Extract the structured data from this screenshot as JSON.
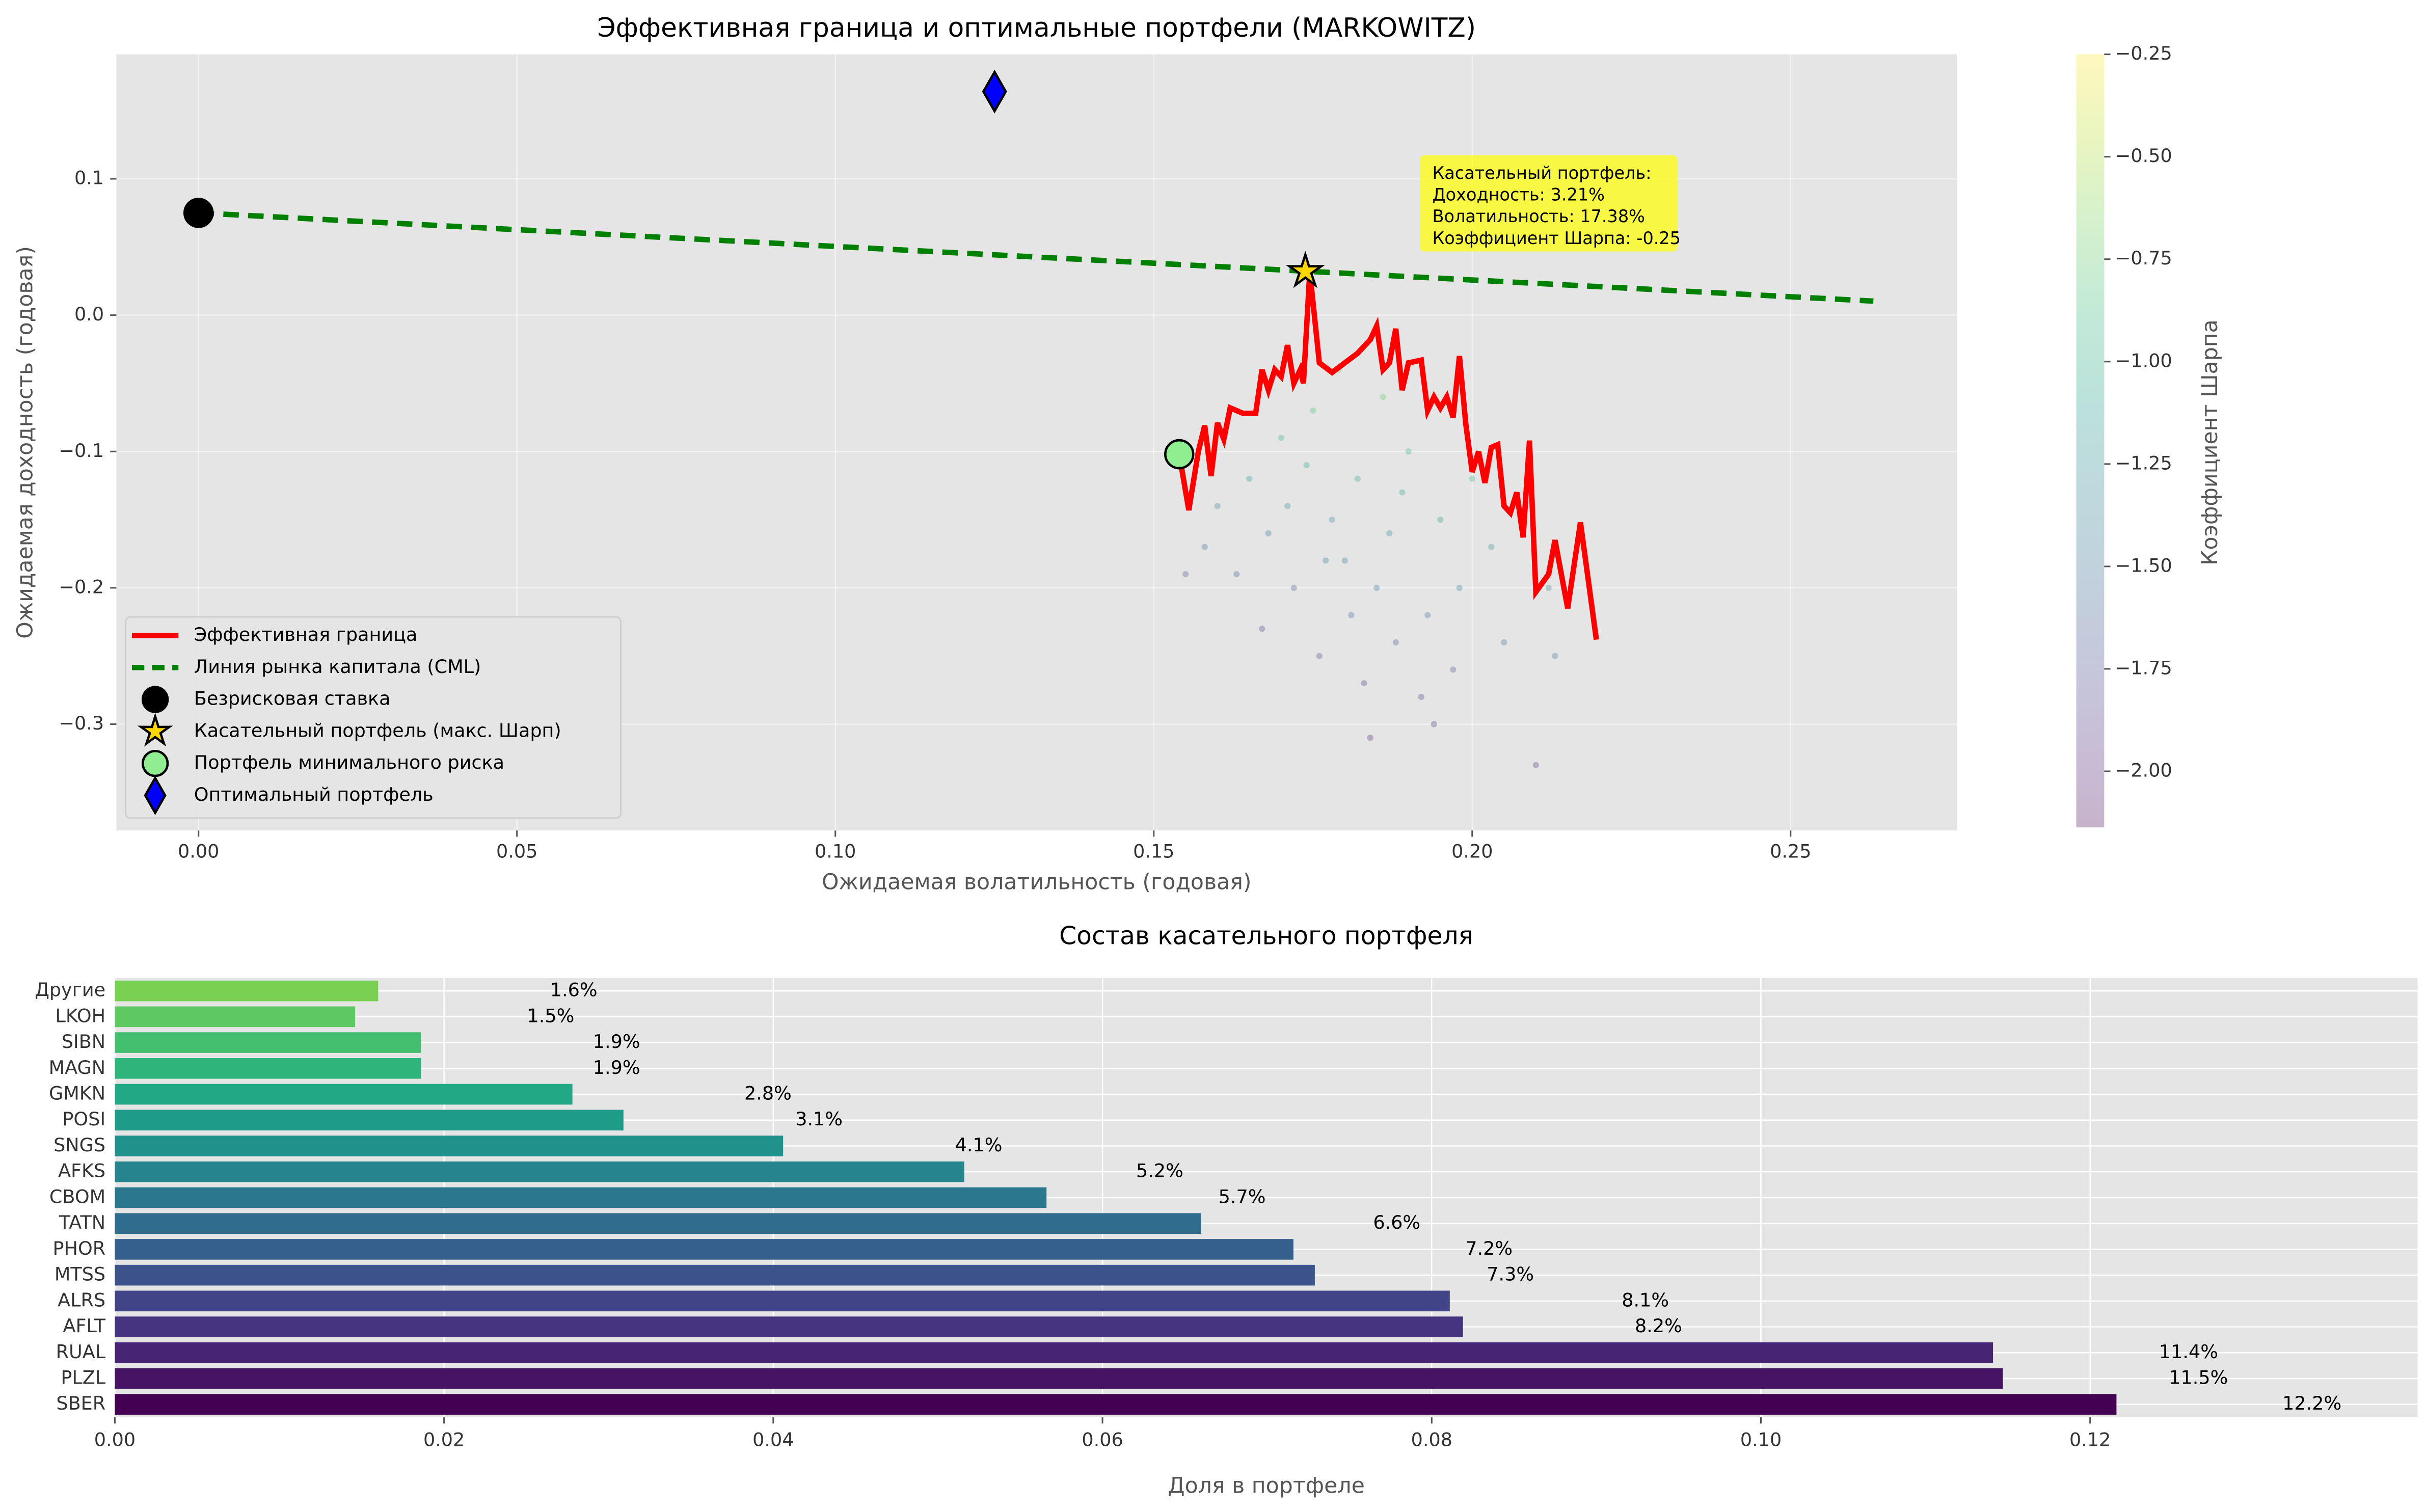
{
  "chart_data": [
    {
      "type": "scatter",
      "title": "Эффективная граница и оптимальные портфели (MARKOWITZ)",
      "xlabel": "Ожидаемая волатильность (годовая)",
      "ylabel": "Ожидаемая доходность (годовая)",
      "xlim": [
        -0.0129,
        0.2761
      ],
      "ylim": [
        -0.378,
        0.1913
      ],
      "xticks": [
        {
          "value": 0,
          "label": "0.00"
        },
        0.05,
        {
          "value": 0.1,
          "label": "0.10"
        },
        0.15,
        {
          "value": 0.2,
          "label": "0.20"
        },
        0.25
      ],
      "yticks": [
        {
          "value": -0.3,
          "label": "−0.3"
        },
        {
          "value": -0.2,
          "label": "−0.2"
        },
        {
          "value": -0.1,
          "label": "−0.1"
        },
        {
          "value": 0,
          "label": "0.0"
        },
        0.1
      ],
      "grid": true,
      "legend": "lower left",
      "series": [
        {
          "kind": "cloud",
          "x": [
            0.165,
            0.17,
            0.175,
            0.178,
            0.18,
            0.182,
            0.185,
            0.188,
            0.19,
            0.172,
            0.168,
            0.176,
            0.183,
            0.192,
            0.195,
            0.198,
            0.2,
            0.16,
            0.163,
            0.158,
            0.186,
            0.179,
            0.174,
            0.181,
            0.187,
            0.193,
            0.197,
            0.203,
            0.207,
            0.205,
            0.21,
            0.212,
            0.155,
            0.167,
            0.184,
            0.189,
            0.177,
            0.171,
            0.194,
            0.213
          ],
          "y": [
            -0.12,
            -0.09,
            -0.07,
            -0.15,
            -0.18,
            -0.12,
            -0.2,
            -0.24,
            -0.1,
            -0.2,
            -0.16,
            -0.25,
            -0.27,
            -0.28,
            -0.15,
            -0.2,
            -0.12,
            -0.14,
            -0.19,
            -0.17,
            -0.06,
            -0.04,
            -0.11,
            -0.22,
            -0.16,
            -0.22,
            -0.26,
            -0.17,
            -0.14,
            -0.24,
            -0.33,
            -0.2,
            -0.19,
            -0.23,
            -0.31,
            -0.13,
            -0.18,
            -0.14,
            -0.3,
            -0.25
          ],
          "color_values": [
            -1.18,
            -0.97,
            -0.83,
            -1.26,
            -1.42,
            -1.07,
            -1.49,
            -1.68,
            -0.92,
            -1.6,
            -1.4,
            -1.85,
            -1.88,
            -1.85,
            -1.15,
            -1.39,
            -0.97,
            -1.34,
            -1.62,
            -1.55,
            -0.73,
            -0.64,
            -1.06,
            -1.63,
            -1.26,
            -1.53,
            -1.7,
            -1.21,
            -1.04,
            -1.54,
            -1.93,
            -1.3,
            -1.71,
            -1.83,
            -2.05,
            -1.08,
            -1.44,
            -1.26,
            -1.93,
            -1.52
          ]
        },
        {
          "name": "Эффективная граница",
          "kind": "line",
          "color": "#ff0000",
          "x": [
            0.154,
            0.1555,
            0.157,
            0.158,
            0.159,
            0.16,
            0.161,
            0.162,
            0.164,
            0.166,
            0.167,
            0.168,
            0.169,
            0.17,
            0.171,
            0.172,
            0.173,
            0.1735,
            0.1745,
            0.176,
            0.178,
            0.18,
            0.182,
            0.184,
            0.185,
            0.186,
            0.187,
            0.188,
            0.189,
            0.19,
            0.192,
            0.193,
            0.194,
            0.195,
            0.196,
            0.197,
            0.198,
            0.199,
            0.2,
            0.201,
            0.202,
            0.203,
            0.204,
            0.205,
            0.206,
            0.207,
            0.208,
            0.209,
            0.21,
            0.212,
            0.213,
            0.215,
            0.217,
            0.2195
          ],
          "y": [
            -0.102,
            -0.143,
            -0.1,
            -0.081,
            -0.118,
            -0.079,
            -0.091,
            -0.068,
            -0.072,
            -0.072,
            -0.04,
            -0.055,
            -0.04,
            -0.045,
            -0.022,
            -0.05,
            -0.04,
            -0.05,
            0.032,
            -0.035,
            -0.042,
            -0.035,
            -0.028,
            -0.018,
            -0.008,
            -0.04,
            -0.035,
            -0.01,
            -0.055,
            -0.035,
            -0.033,
            -0.07,
            -0.06,
            -0.068,
            -0.06,
            -0.075,
            -0.03,
            -0.08,
            -0.115,
            -0.1,
            -0.123,
            -0.097,
            -0.095,
            -0.14,
            -0.145,
            -0.13,
            -0.163,
            -0.092,
            -0.203,
            -0.19,
            -0.165,
            -0.215,
            -0.152,
            -0.238
          ]
        },
        {
          "name": "Линия рынка капитала (CML)",
          "kind": "dashed",
          "color": "#008000",
          "x": [
            0,
            0.263
          ],
          "y": [
            0.075,
            0.0103
          ]
        },
        {
          "name": "Безрисковая ставка",
          "kind": "marker",
          "marker": "circle",
          "color": "#000000",
          "x": [
            0
          ],
          "y": [
            0.075
          ]
        },
        {
          "name": "Касательный портфель (макс. Шарп)",
          "kind": "marker",
          "marker": "star",
          "color": "#ffd700",
          "x": [
            0.1738
          ],
          "y": [
            0.0321
          ]
        },
        {
          "name": "Портфель минимального риска",
          "kind": "marker",
          "marker": "circle",
          "color": "#90ee90",
          "x": [
            0.154
          ],
          "y": [
            -0.102
          ]
        },
        {
          "name": "Оптимальный портфель",
          "kind": "marker",
          "marker": "diamond",
          "color": "#0000ff",
          "x": [
            0.125
          ],
          "y": [
            0.164
          ]
        }
      ],
      "annotation": [
        "Касательный портфель:",
        "Доходность: 3.21%",
        "Волатильность: 17.38%",
        "Коэффициент Шарпа: -0.25"
      ],
      "colorbar": {
        "label": "Коэффициент Шарпа",
        "lim": [
          -2.137,
          -0.25
        ],
        "cmap": "viridis",
        "alpha": 0.3,
        "ticks": [
          {
            "value": -2,
            "label": "−2.00"
          },
          {
            "value": -1.75,
            "label": "−1.75"
          },
          {
            "value": -1.5,
            "label": "−1.50"
          },
          {
            "value": -1.25,
            "label": "−1.25"
          },
          {
            "value": -1,
            "label": "−1.00"
          },
          {
            "value": -0.75,
            "label": "−0.75"
          },
          {
            "value": -0.5,
            "label": "−0.50"
          },
          {
            "value": -0.25,
            "label": "−0.25"
          }
        ]
      }
    },
    {
      "type": "barh",
      "title": "Состав касательного портфеля",
      "xlabel": "Доля в портфеле",
      "categories": [
        "SBER",
        "PLZL",
        "RUAL",
        "AFLT",
        "ALRS",
        "MTSS",
        "PHOR",
        "TATN",
        "CBOM",
        "AFKS",
        "SNGS",
        "POSI",
        "GMKN",
        "MAGN",
        "SIBN",
        "LKOH",
        "Другие"
      ],
      "values": [
        0.1216,
        0.1147,
        0.1141,
        0.0819,
        0.0811,
        0.0729,
        0.0716,
        0.066,
        0.0566,
        0.0516,
        0.0406,
        0.0309,
        0.0278,
        0.0186,
        0.0186,
        0.0146,
        0.016
      ],
      "value_labels": [
        "12.2%",
        "11.5%",
        "11.4%",
        "8.2%",
        "8.1%",
        "7.3%",
        "7.2%",
        "6.6%",
        "5.7%",
        "5.2%",
        "4.1%",
        "3.1%",
        "2.8%",
        "1.9%",
        "1.9%",
        "1.5%",
        "1.6%"
      ],
      "colors": [
        "#440154",
        "#471365",
        "#482475",
        "#463480",
        "#414487",
        "#3b528b",
        "#355f8d",
        "#2f6c8e",
        "#2a788e",
        "#25848e",
        "#21918c",
        "#1e9c89",
        "#22a884",
        "#2fb47c",
        "#44bf70",
        "#5ec962",
        "#7ad151"
      ],
      "xlim": [
        0,
        0.1399
      ],
      "xticks": [
        {
          "value": 0,
          "label": "0.00"
        },
        0.02,
        0.04,
        0.06,
        0.08,
        {
          "value": 0.1,
          "label": "0.10"
        },
        0.12
      ],
      "grid": true
    }
  ]
}
